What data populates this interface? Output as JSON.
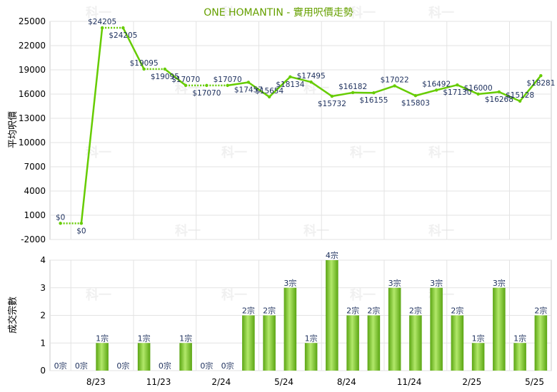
{
  "title": "ONE HOMANTIN - 實用呎價走勢",
  "watermark": "科一",
  "chart_data": [
    {
      "type": "line",
      "ylabel": "平均呎價",
      "ylim": [
        -2000,
        25000
      ],
      "yticks": [
        -2000,
        1000,
        4000,
        7000,
        10000,
        13000,
        16000,
        19000,
        22000,
        25000
      ],
      "xtick_labels": [
        "8/23",
        "11/23",
        "2/24",
        "5/24",
        "8/24",
        "11/24",
        "2/25",
        "5/25"
      ],
      "points": [
        0,
        0,
        24205,
        24205,
        19095,
        19095,
        17070,
        17070,
        17070,
        17457,
        15654,
        18134,
        17495,
        15732,
        16182,
        16155,
        17022,
        15803,
        16492,
        17130,
        16000,
        16268,
        15128,
        18281
      ],
      "labels": [
        "$0",
        "$0",
        "$24205",
        "$24205",
        "$19095",
        "$19095",
        "$17070",
        "$17070",
        "$17070",
        "$17457",
        "$15654",
        "$18134",
        "$17495",
        "$15732",
        "$16182",
        "$16155",
        "$17022",
        "$15803",
        "$16492",
        "$17130",
        "$16000",
        "$16268",
        "$15128",
        "$18281"
      ],
      "dotted_segments": [
        0,
        2,
        4,
        6,
        7
      ],
      "color": "#66cc00"
    },
    {
      "type": "bar",
      "ylabel": "成交宗數",
      "ylim": [
        0,
        4
      ],
      "yticks": [
        0,
        1,
        2,
        3,
        4
      ],
      "xtick_labels": [
        "8/23",
        "11/23",
        "2/24",
        "5/24",
        "8/24",
        "11/24",
        "2/25",
        "5/25"
      ],
      "values": [
        0,
        0,
        1,
        0,
        1,
        0,
        1,
        0,
        0,
        2,
        2,
        3,
        1,
        4,
        2,
        2,
        3,
        2,
        3,
        2,
        1,
        3,
        1,
        2
      ],
      "labels": [
        "0宗",
        "0宗",
        "1宗",
        "0宗",
        "1宗",
        "0宗",
        "1宗",
        "0宗",
        "0宗",
        "2宗",
        "2宗",
        "3宗",
        "1宗",
        "4宗",
        "2宗",
        "2宗",
        "3宗",
        "2宗",
        "3宗",
        "2宗",
        "1宗",
        "3宗",
        "1宗",
        "2宗"
      ],
      "color": "#77c520"
    }
  ]
}
